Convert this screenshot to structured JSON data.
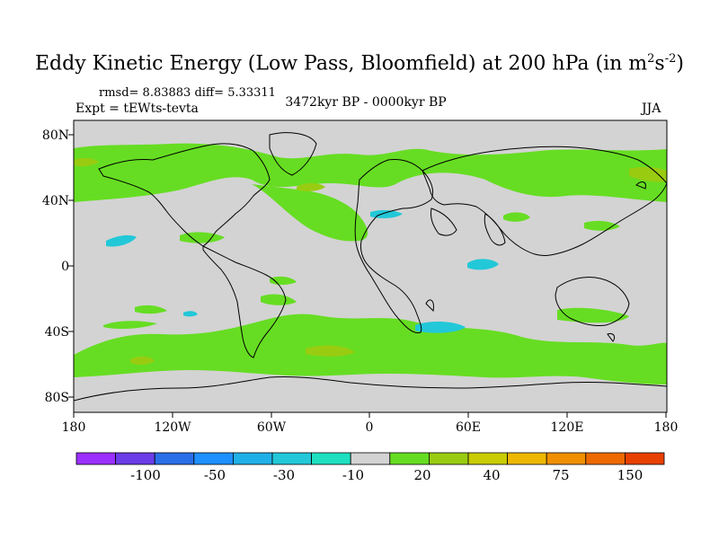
{
  "header": {
    "title": "Eddy Kinetic Energy (Low Pass, Bloomfield) at 200 hPa (in m",
    "title_unit_m_exp": "2",
    "title_unit_s": "s",
    "title_unit_s_exp": "-2",
    "title_close": ")",
    "stats": "rmsd= 8.83883 diff= 5.33311",
    "expt": "Expt = tEWts-tevta",
    "period": "3472kyr BP - 0000kyr BP",
    "season": "JJA"
  },
  "axes": {
    "y_ticks": [
      "80N",
      "40N",
      "0",
      "40S",
      "80S"
    ],
    "x_ticks": [
      "180",
      "120W",
      "60W",
      "0",
      "60E",
      "120E",
      "180"
    ]
  },
  "colorbar": {
    "colors": [
      "#9b30ff",
      "#6a3de8",
      "#2a6fe8",
      "#1e90ff",
      "#20b0e8",
      "#22c8d8",
      "#1ee0c0",
      "#d3d3d3",
      "#66dd22",
      "#99cc11",
      "#c8cc00",
      "#eeb800",
      "#f09000",
      "#ee6a00",
      "#e84000"
    ],
    "labels": [
      "-100",
      "-50",
      "-30",
      "-10",
      "20",
      "40",
      "75",
      "150"
    ]
  },
  "map_colors": {
    "ocean_land_neutral": "#d3d3d3",
    "positive": "#66dd22",
    "positive_strong": "#99cc11",
    "negative": "#22c8d8",
    "coast": "#000000"
  }
}
